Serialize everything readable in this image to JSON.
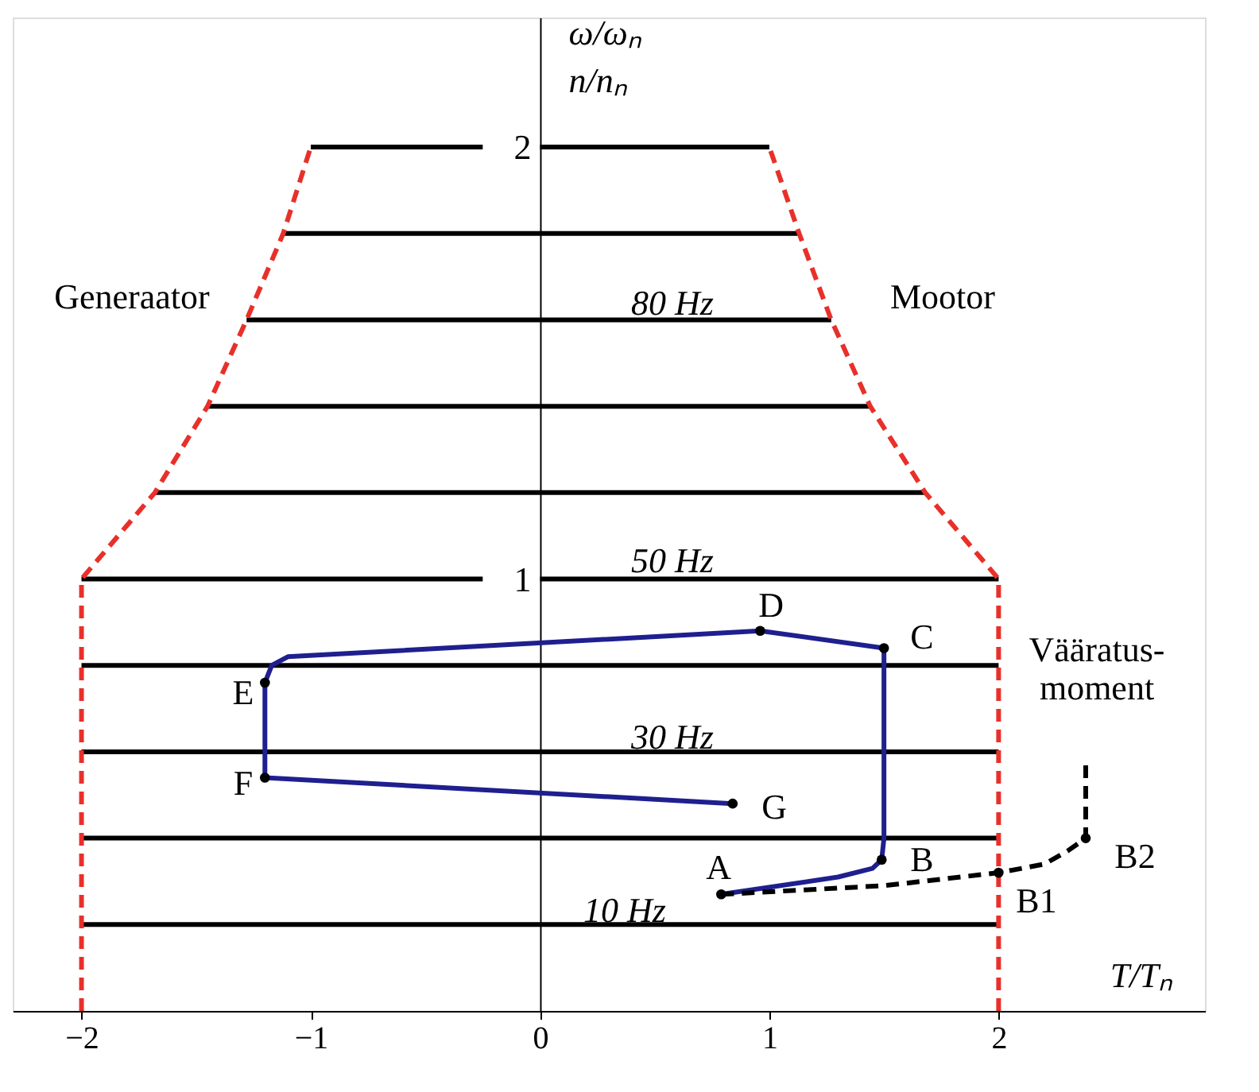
{
  "chart_data": {
    "type": "line",
    "xlabel": "T/Tₙ",
    "ylabel": "ω/ωₙ\nn/nₙ",
    "xlim": [
      -2.3,
      2.9
    ],
    "ylim": [
      0,
      2.3
    ],
    "xticks": [
      -2,
      -1,
      0,
      1,
      2
    ],
    "yticks": [
      1,
      2
    ],
    "grid": false,
    "marker": "none",
    "line_style": "solid",
    "series": [
      {
        "color": "#000000",
        "x": [
          -1,
          -0.25
        ],
        "values": [
          2,
          2
        ]
      },
      {
        "color": "#000000",
        "x": [
          0,
          1
        ],
        "values": [
          2,
          2
        ]
      },
      {
        "color": "#000000",
        "x": [
          -1.12,
          1.13
        ],
        "values": [
          1.8,
          1.8
        ]
      },
      {
        "color": "#000000",
        "x": [
          -1.28,
          1.27
        ],
        "values": [
          1.6,
          1.6
        ]
      },
      {
        "color": "#000000",
        "x": [
          -1.45,
          1.44
        ],
        "values": [
          1.4,
          1.4
        ]
      },
      {
        "color": "#000000",
        "x": [
          -1.68,
          1.68
        ],
        "values": [
          1.2,
          1.2
        ]
      },
      {
        "color": "#000000",
        "x": [
          -2,
          -0.25
        ],
        "values": [
          1,
          1
        ]
      },
      {
        "color": "#000000",
        "x": [
          0,
          2
        ],
        "values": [
          1,
          1
        ]
      },
      {
        "color": "#000000",
        "x": [
          -2,
          2
        ],
        "values": [
          0.8,
          0.8
        ]
      },
      {
        "color": "#000000",
        "x": [
          -2,
          2
        ],
        "values": [
          0.6,
          0.6
        ]
      },
      {
        "color": "#000000",
        "x": [
          -2,
          2
        ],
        "values": [
          0.4,
          0.4
        ]
      },
      {
        "color": "#000000",
        "x": [
          -2,
          2
        ],
        "values": [
          0.2,
          0.2
        ]
      },
      {
        "color": "#e8302a",
        "line_style": "dashed",
        "x": [
          -2,
          -2,
          -1.68,
          -1.45,
          -1.28,
          -1.12,
          -1
        ],
        "values": [
          0,
          1,
          1.2,
          1.4,
          1.6,
          1.8,
          2
        ]
      },
      {
        "color": "#e8302a",
        "line_style": "dashed",
        "x": [
          2,
          2,
          1.68,
          1.44,
          1.27,
          1.13,
          1
        ],
        "values": [
          0,
          1,
          1.2,
          1.4,
          1.6,
          1.8,
          2
        ]
      },
      {
        "color": "#1f1f8f",
        "x": [
          0.79,
          1.3,
          1.45,
          1.49,
          1.5,
          1.5,
          0.96,
          -1.1,
          -1.17,
          -1.2,
          -1.2,
          0.84
        ],
        "values": [
          0.27,
          0.31,
          0.33,
          0.35,
          0.4,
          0.84,
          0.88,
          0.82,
          0.8,
          0.76,
          0.54,
          0.48
        ]
      },
      {
        "color": "#000000",
        "line_style": "dashed",
        "x": [
          0.79,
          1.5,
          2.0,
          2.2,
          2.3,
          2.38,
          2.38
        ],
        "values": [
          0.27,
          0.29,
          0.32,
          0.34,
          0.37,
          0.4,
          0.58
        ]
      },
      {
        "type": "scatter",
        "marker": "circle",
        "color": "#000000",
        "x": [
          0.79,
          1.49,
          1.5,
          0.96,
          -1.2,
          -1.2,
          0.84,
          2.0,
          2.38
        ],
        "values": [
          0.27,
          0.35,
          0.84,
          0.88,
          0.76,
          0.54,
          0.48,
          0.32,
          0.4
        ]
      }
    ],
    "annotations": [
      "A",
      "B",
      "C",
      "D",
      "E",
      "F",
      "G",
      "B1",
      "B2",
      "80 Hz",
      "50 Hz",
      "30 Hz",
      "10 Hz",
      "Generaator",
      "Mootor",
      "Vääratus-\nmoment"
    ]
  }
}
